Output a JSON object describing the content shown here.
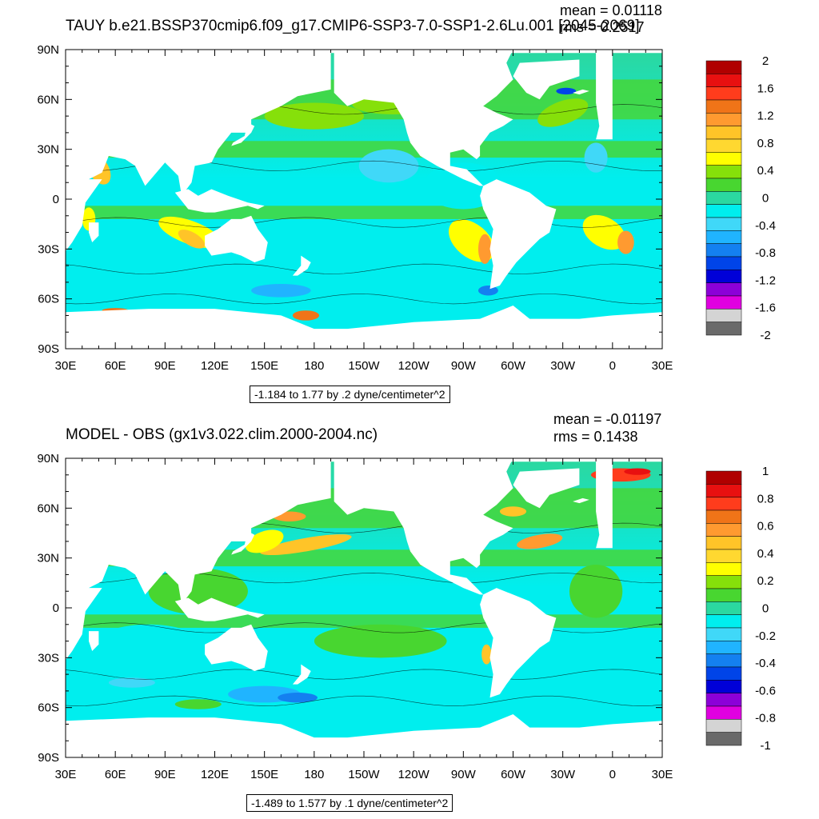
{
  "chart_data": [
    {
      "type": "heatmap",
      "title": "TAUY b.e21.BSSP370cmip6.f09_g17.CMIP6-SSP3-7.0-SSP1-2.6Lu.001 [2045-2069]",
      "stats": {
        "mean": "mean = 0.01118",
        "rms": "rms = 0.2517"
      },
      "x_ticks": [
        "30E",
        "60E",
        "90E",
        "120E",
        "150E",
        "180",
        "150W",
        "120W",
        "90W",
        "60W",
        "30W",
        "0",
        "30E"
      ],
      "y_ticks": [
        "90N",
        "60N",
        "30N",
        "0",
        "30S",
        "60S",
        "90S"
      ],
      "xlim": [
        30,
        390
      ],
      "ylim": [
        -90,
        90
      ],
      "info": "-1.184 to 1.77 by .2 dyne/centimeter^2",
      "colorbar": {
        "labels": [
          "2",
          "1.6",
          "1.2",
          "0.8",
          "0.4",
          "0",
          "-0.4",
          "-0.8",
          "-1.2",
          "-1.6",
          "-2"
        ],
        "colors": [
          "#b00000",
          "#e81010",
          "#ff3c1c",
          "#f07418",
          "#ff9a30",
          "#ffc428",
          "#ffd830",
          "#ffff00",
          "#86e00a",
          "#48d630",
          "#2bd8a0",
          "#00eeee",
          "#40d8f8",
          "#20b4ff",
          "#1480f0",
          "#0044e8",
          "#0000d8",
          "#8c00d8",
          "#e000e0",
          "#d4d4d4",
          "#6a6a6a"
        ]
      }
    },
    {
      "type": "heatmap",
      "title": "MODEL - OBS (gx1v3.022.clim.2000-2004.nc)",
      "stats": {
        "mean": "mean = -0.01197",
        "rms": "rms = 0.1438"
      },
      "x_ticks": [
        "30E",
        "60E",
        "90E",
        "120E",
        "150E",
        "180",
        "150W",
        "120W",
        "90W",
        "60W",
        "30W",
        "0",
        "30E"
      ],
      "y_ticks": [
        "90N",
        "60N",
        "30N",
        "0",
        "30S",
        "60S",
        "90S"
      ],
      "xlim": [
        30,
        390
      ],
      "ylim": [
        -90,
        90
      ],
      "info": "-1.489 to 1.577 by .1 dyne/centimeter^2",
      "colorbar": {
        "labels": [
          "1",
          "0.8",
          "0.6",
          "0.4",
          "0.2",
          "0",
          "-0.2",
          "-0.4",
          "-0.6",
          "-0.8",
          "-1"
        ],
        "colors": [
          "#b00000",
          "#e81010",
          "#ff3c1c",
          "#f07418",
          "#ff9a30",
          "#ffc428",
          "#ffd830",
          "#ffff00",
          "#86e00a",
          "#48d630",
          "#2bd8a0",
          "#00eeee",
          "#40d8f8",
          "#20b4ff",
          "#1480f0",
          "#0044e8",
          "#0000d8",
          "#8c00d8",
          "#e000e0",
          "#d4d4d4",
          "#6a6a6a"
        ]
      }
    }
  ],
  "colors": {
    "land": "#ffffff",
    "ocean_base_top": "#2bd8a0",
    "ocean_base_bottom": "#00eeee",
    "frame": "#000000"
  }
}
